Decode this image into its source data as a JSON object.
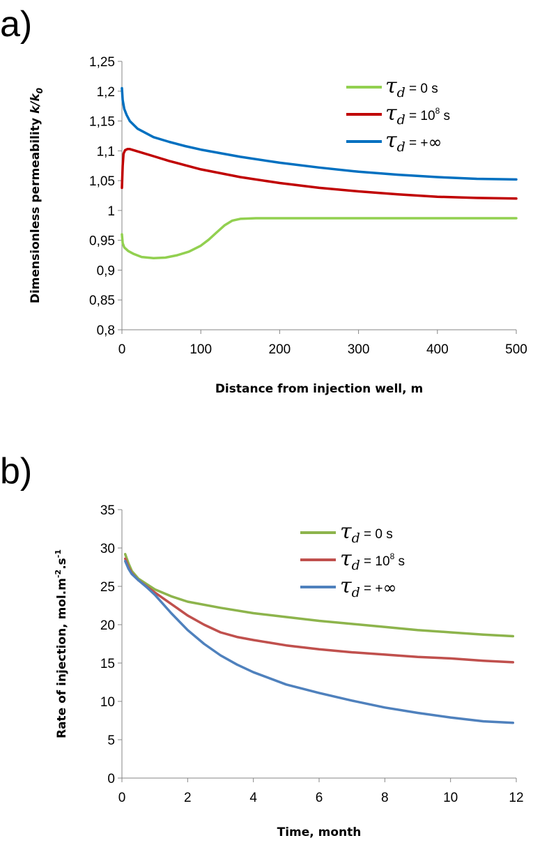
{
  "chart_data": [
    {
      "panel_label": "a)",
      "type": "line",
      "xlabel": "Distance from injection well, m",
      "ylabel_prefix": "Dimensionless permeability ",
      "ylabel_k": "k/k",
      "ylabel_sub": "0",
      "xlim": [
        0,
        500
      ],
      "ylim": [
        0.8,
        1.25
      ],
      "xticks": [
        0,
        100,
        200,
        300,
        400,
        500
      ],
      "xtick_labels": [
        "0",
        "100",
        "200",
        "300",
        "400",
        "500"
      ],
      "yticks": [
        0.8,
        0.85,
        0.9,
        0.95,
        1,
        1.05,
        1.1,
        1.15,
        1.2,
        1.25
      ],
      "ytick_labels": [
        "0,8",
        "0,85",
        "0,9",
        "0,95",
        "1",
        "1,05",
        "1,1",
        "1,15",
        "1,2",
        "1,25"
      ],
      "grid": false,
      "legend_position": "top-right",
      "series": [
        {
          "name": "τd = 0 s",
          "legend": {
            "sym": "τ",
            "sub": "d",
            "text": " = 0 s",
            "sup": ""
          },
          "color": "#92d050",
          "points": [
            [
              0,
              0.96
            ],
            [
              1,
              0.945
            ],
            [
              3,
              0.938
            ],
            [
              8,
              0.932
            ],
            [
              15,
              0.927
            ],
            [
              25,
              0.922
            ],
            [
              40,
              0.92
            ],
            [
              55,
              0.921
            ],
            [
              70,
              0.925
            ],
            [
              85,
              0.931
            ],
            [
              100,
              0.941
            ],
            [
              110,
              0.951
            ],
            [
              120,
              0.963
            ],
            [
              130,
              0.975
            ],
            [
              140,
              0.983
            ],
            [
              150,
              0.986
            ],
            [
              170,
              0.987
            ],
            [
              250,
              0.987
            ],
            [
              350,
              0.987
            ],
            [
              500,
              0.987
            ]
          ]
        },
        {
          "name": "τd = 108 s",
          "legend": {
            "sym": "τ",
            "sub": "d",
            "text": " = 10",
            "sup": "8",
            "text2": " s"
          },
          "color": "#c00000",
          "points": [
            [
              0,
              1.038
            ],
            [
              1,
              1.075
            ],
            [
              2,
              1.095
            ],
            [
              4,
              1.101
            ],
            [
              7,
              1.103
            ],
            [
              10,
              1.103
            ],
            [
              20,
              1.099
            ],
            [
              40,
              1.091
            ],
            [
              60,
              1.083
            ],
            [
              80,
              1.076
            ],
            [
              100,
              1.069
            ],
            [
              150,
              1.056
            ],
            [
              200,
              1.046
            ],
            [
              250,
              1.038
            ],
            [
              300,
              1.032
            ],
            [
              350,
              1.027
            ],
            [
              400,
              1.023
            ],
            [
              450,
              1.021
            ],
            [
              500,
              1.02
            ]
          ]
        },
        {
          "name": "τd = +∞",
          "legend": {
            "sym": "τ",
            "sub": "d",
            "text": " = +",
            "inf": "∞"
          },
          "color": "#0070c0",
          "points": [
            [
              0,
              1.205
            ],
            [
              1,
              1.185
            ],
            [
              3,
              1.17
            ],
            [
              6,
              1.16
            ],
            [
              10,
              1.15
            ],
            [
              20,
              1.137
            ],
            [
              40,
              1.123
            ],
            [
              60,
              1.115
            ],
            [
              80,
              1.108
            ],
            [
              100,
              1.102
            ],
            [
              150,
              1.09
            ],
            [
              200,
              1.08
            ],
            [
              250,
              1.072
            ],
            [
              300,
              1.065
            ],
            [
              350,
              1.06
            ],
            [
              400,
              1.056
            ],
            [
              450,
              1.053
            ],
            [
              500,
              1.052
            ]
          ]
        }
      ]
    },
    {
      "panel_label": "b)",
      "type": "line",
      "xlabel": "Time, month",
      "ylabel_text": "Rate of injection, mol.m",
      "ylabel_sup1": "-2",
      "ylabel_mid": ".s",
      "ylabel_sup2": "-1",
      "xlim": [
        0,
        12
      ],
      "ylim": [
        0,
        35
      ],
      "xticks": [
        0,
        2,
        4,
        6,
        8,
        10,
        12
      ],
      "xtick_labels": [
        "0",
        "2",
        "4",
        "6",
        "8",
        "10",
        "12"
      ],
      "yticks": [
        0,
        5,
        10,
        15,
        20,
        25,
        30,
        35
      ],
      "ytick_labels": [
        "0",
        "5",
        "10",
        "15",
        "20",
        "25",
        "30",
        "35"
      ],
      "grid": false,
      "legend_position": "top-right",
      "series": [
        {
          "name": "τd = 0 s",
          "legend": {
            "sym": "τ",
            "sub": "d",
            "text": " = 0 s",
            "sup": ""
          },
          "color": "#8db44c",
          "points": [
            [
              0.1,
              29.2
            ],
            [
              0.2,
              28.0
            ],
            [
              0.3,
              27.0
            ],
            [
              0.5,
              26.0
            ],
            [
              0.75,
              25.3
            ],
            [
              1.0,
              24.6
            ],
            [
              1.5,
              23.7
            ],
            [
              2,
              23.0
            ],
            [
              3,
              22.2
            ],
            [
              4,
              21.5
            ],
            [
              5,
              21.0
            ],
            [
              6,
              20.5
            ],
            [
              7,
              20.1
            ],
            [
              8,
              19.7
            ],
            [
              9,
              19.3
            ],
            [
              10,
              19.0
            ],
            [
              11,
              18.7
            ],
            [
              11.9,
              18.5
            ]
          ]
        },
        {
          "name": "τd = 108 s",
          "legend": {
            "sym": "τ",
            "sub": "d",
            "text": " = 10",
            "sup": "8",
            "text2": " s"
          },
          "color": "#c0504d",
          "points": [
            [
              0.1,
              28.6
            ],
            [
              0.2,
              27.5
            ],
            [
              0.3,
              26.7
            ],
            [
              0.5,
              25.8
            ],
            [
              0.75,
              25.0
            ],
            [
              1.0,
              24.2
            ],
            [
              1.5,
              22.7
            ],
            [
              2,
              21.2
            ],
            [
              2.5,
              20.0
            ],
            [
              3,
              19.0
            ],
            [
              3.5,
              18.4
            ],
            [
              4,
              18.0
            ],
            [
              5,
              17.3
            ],
            [
              6,
              16.8
            ],
            [
              7,
              16.4
            ],
            [
              8,
              16.1
            ],
            [
              9,
              15.8
            ],
            [
              10,
              15.6
            ],
            [
              11,
              15.3
            ],
            [
              11.9,
              15.1
            ]
          ]
        },
        {
          "name": "τd = +∞",
          "legend": {
            "sym": "τ",
            "sub": "d",
            "text": " = +",
            "inf": "∞"
          },
          "color": "#4f81bd",
          "points": [
            [
              0.1,
              28.3
            ],
            [
              0.2,
              27.3
            ],
            [
              0.3,
              26.6
            ],
            [
              0.5,
              25.8
            ],
            [
              0.75,
              24.9
            ],
            [
              1.0,
              23.9
            ],
            [
              1.5,
              21.5
            ],
            [
              2,
              19.3
            ],
            [
              2.5,
              17.5
            ],
            [
              3,
              16.0
            ],
            [
              3.5,
              14.8
            ],
            [
              4,
              13.8
            ],
            [
              5,
              12.2
            ],
            [
              6,
              11.1
            ],
            [
              7,
              10.1
            ],
            [
              8,
              9.2
            ],
            [
              9,
              8.5
            ],
            [
              10,
              7.9
            ],
            [
              11,
              7.4
            ],
            [
              11.9,
              7.2
            ]
          ]
        }
      ]
    }
  ]
}
